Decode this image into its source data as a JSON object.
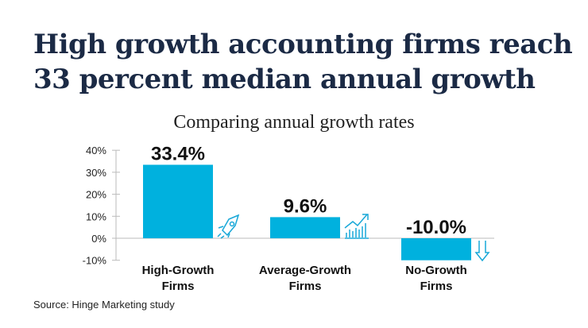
{
  "title": "High growth accounting firms reach 33 percent median annual growth",
  "source": "Source: Hinge Marketing study",
  "colors": {
    "bar": "#00b1de",
    "title": "#1b2a45",
    "icon": "#18a8d8"
  },
  "chart_data": {
    "type": "bar",
    "title": "Comparing annual growth rates",
    "categories": [
      [
        "High-Growth",
        "Firms"
      ],
      [
        "Average-Growth",
        "Firms"
      ],
      [
        "No-Growth",
        "Firms"
      ]
    ],
    "values": [
      33.4,
      9.6,
      -10.0
    ],
    "data_labels": [
      "33.4%",
      "9.6%",
      "-10.0%"
    ],
    "icons": [
      "rocket-icon",
      "growth-chart-icon",
      "down-arrow-icon"
    ],
    "yticks": [
      40,
      30,
      20,
      10,
      0,
      -10
    ],
    "ytick_labels": [
      "40%",
      "30%",
      "20%",
      "10%",
      "0%",
      "-10%"
    ],
    "ylim": [
      -10,
      40
    ],
    "xlabel": "",
    "ylabel": "",
    "grid": false
  }
}
